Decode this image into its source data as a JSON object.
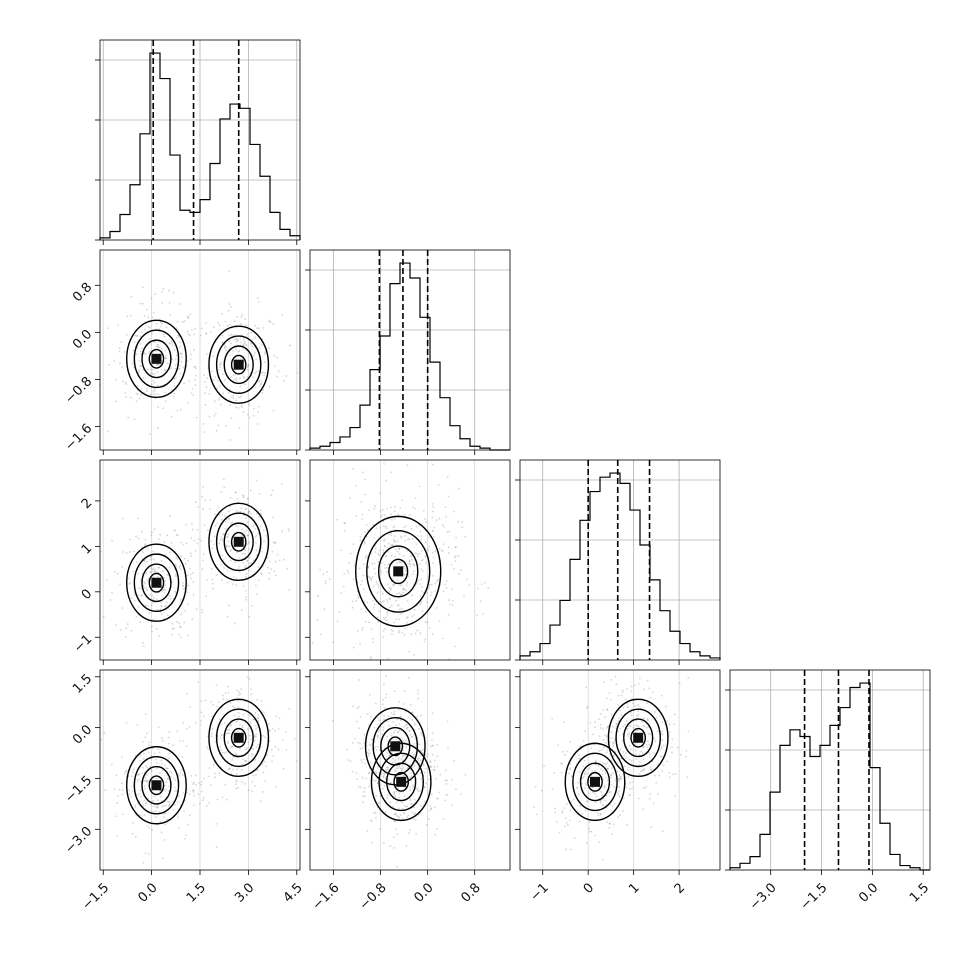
{
  "chart_data": {
    "type": "corner",
    "parameters": [
      {
        "xlim": [
          -1.6,
          4.6
        ],
        "ticks": [
          -1.5,
          0.0,
          1.5,
          3.0,
          4.5
        ],
        "tick_labels": [
          "−1.5",
          "0.0",
          "1.5",
          "3.0",
          "4.5"
        ],
        "quantiles": [
          0.05,
          1.3,
          2.7
        ]
      },
      {
        "xlim": [
          -2.0,
          1.4
        ],
        "ticks": [
          -1.6,
          -0.8,
          0.0,
          0.8
        ],
        "tick_labels": [
          "−1.6",
          "−0.8",
          "0.0",
          "0.8"
        ],
        "quantiles": [
          -0.82,
          -0.42,
          0.0
        ]
      },
      {
        "xlim": [
          -1.5,
          2.9
        ],
        "ticks": [
          -1,
          0,
          1,
          2
        ],
        "tick_labels": [
          "−1",
          "0",
          "1",
          "2"
        ],
        "quantiles": [
          0.0,
          0.65,
          1.35
        ]
      },
      {
        "xlim": [
          -4.2,
          1.7
        ],
        "ticks": [
          -3.0,
          -1.5,
          0.0,
          1.5
        ],
        "tick_labels": [
          "−3.0",
          "−1.5",
          "0.0",
          "1.5"
        ],
        "quantiles": [
          -2.0,
          -1.0,
          -0.1
        ]
      }
    ],
    "row_axes": [
      null,
      {
        "ylim": [
          -2.0,
          1.4
        ],
        "ticks": [
          -1.6,
          -0.8,
          0.0,
          0.8
        ],
        "tick_labels": [
          "−1.6",
          "−0.8",
          "0.0",
          "0.8"
        ]
      },
      {
        "ylim": [
          -1.5,
          2.9
        ],
        "ticks": [
          -1,
          0,
          1,
          2
        ],
        "tick_labels": [
          "−1",
          "0",
          "1",
          "2"
        ]
      },
      {
        "ylim": [
          -4.2,
          1.7
        ],
        "ticks": [
          -3.0,
          -1.5,
          0.0,
          1.5
        ],
        "tick_labels": [
          "−3.0",
          "−1.5",
          "0.0",
          "1.5"
        ]
      }
    ],
    "histograms": [
      {
        "param": 0,
        "bins": 20,
        "range": [
          -1.6,
          4.6
        ],
        "counts": [
          1,
          4,
          12,
          26,
          50,
          88,
          76,
          40,
          14,
          13,
          19,
          36,
          57,
          64,
          62,
          45,
          30,
          13,
          5,
          2
        ]
      },
      {
        "param": 1,
        "bins": 20,
        "range": [
          -2.0,
          1.4
        ],
        "counts": [
          1,
          2,
          4,
          7,
          12,
          24,
          43,
          61,
          89,
          100,
          92,
          71,
          47,
          28,
          13,
          6,
          2,
          1,
          0,
          0
        ]
      },
      {
        "param": 2,
        "bins": 20,
        "range": [
          -1.5,
          2.9
        ],
        "counts": [
          2,
          4,
          8,
          17,
          29,
          49,
          68,
          82,
          89,
          91,
          86,
          73,
          56,
          39,
          24,
          14,
          8,
          4,
          2,
          1
        ]
      },
      {
        "param": 3,
        "bins": 20,
        "range": [
          -4.2,
          1.7
        ],
        "counts": [
          1,
          3,
          6,
          16,
          35,
          56,
          63,
          60,
          51,
          56,
          65,
          73,
          82,
          84,
          46,
          21,
          7,
          2,
          1,
          0
        ]
      }
    ],
    "density_peaks": [
      {
        "row": 1,
        "col": 0,
        "peaks": [
          [
            0.15,
            -0.45
          ],
          [
            2.7,
            -0.55
          ]
        ]
      },
      {
        "row": 2,
        "col": 0,
        "peaks": [
          [
            0.15,
            0.2
          ],
          [
            2.7,
            1.1
          ]
        ]
      },
      {
        "row": 2,
        "col": 1,
        "peaks": [
          [
            -0.5,
            0.45
          ]
        ]
      },
      {
        "row": 3,
        "col": 0,
        "peaks": [
          [
            0.15,
            -1.7
          ],
          [
            2.7,
            -0.3
          ]
        ]
      },
      {
        "row": 3,
        "col": 1,
        "peaks": [
          [
            -0.55,
            -0.55
          ],
          [
            -0.45,
            -1.6
          ]
        ]
      },
      {
        "row": 3,
        "col": 2,
        "peaks": [
          [
            0.15,
            -1.6
          ],
          [
            1.1,
            -0.3
          ]
        ]
      }
    ]
  }
}
